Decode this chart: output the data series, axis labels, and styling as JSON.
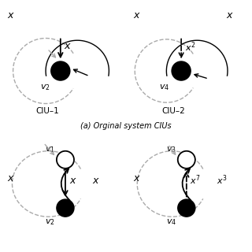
{
  "subtitle_a": "(a) Orginal system CIUs",
  "label_ciu1": "CIU–1",
  "label_ciu2": "CIU–2",
  "dashed_color": "#aaaaaa",
  "node_r": 0.18,
  "fig_bg": "#ffffff"
}
